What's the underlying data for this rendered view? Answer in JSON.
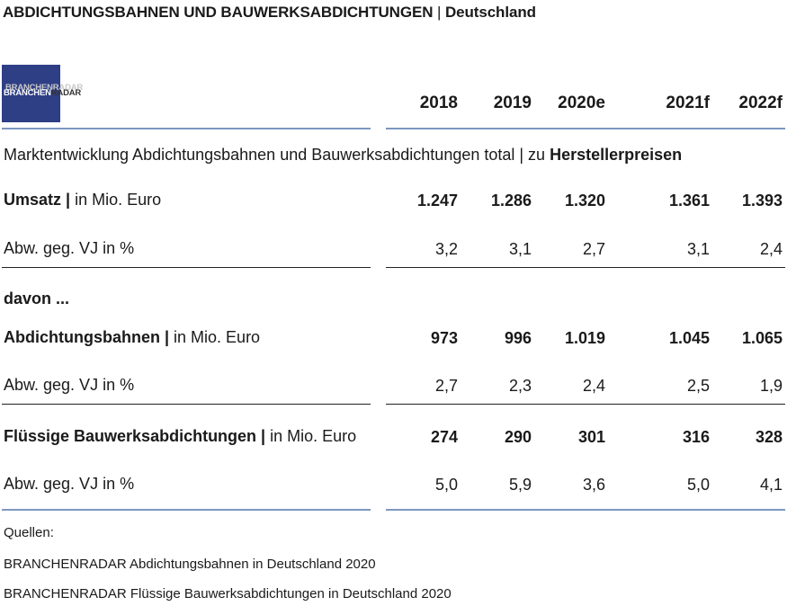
{
  "header": {
    "title_main": "ABDICHTUNGSBAHNEN UND BAUWERKSABDICHTUNGEN",
    "title_sep": " | ",
    "title_region": "Deutschland"
  },
  "logo": {
    "text_part1": "BRANCHEN",
    "text_part2": "RADAR",
    "ghost_text": "BRANCHENRADAR",
    "color": "#2e3f86"
  },
  "years": [
    "2018",
    "2019",
    "2020e",
    "2021f",
    "2022f"
  ],
  "section_heading": {
    "text": "Marktentwicklung Abdichtungsbahnen und Bauwerksabdichtungen total | zu ",
    "bold": "Herstellerpreisen"
  },
  "rows": {
    "umsatz": {
      "label_bold": "Umsatz |",
      "label_rest": " in Mio. Euro",
      "values": [
        "1.247",
        "1.286",
        "1.320",
        "1.361",
        "1.393"
      ]
    },
    "umsatz_abw": {
      "label": "Abw. geg. VJ in %",
      "values": [
        "3,2",
        "3,1",
        "2,7",
        "3,1",
        "2,4"
      ]
    },
    "davon": {
      "label": "davon ..."
    },
    "bahnen": {
      "label_bold": "Abdichtungsbahnen |",
      "label_rest": " in Mio. Euro",
      "values": [
        "973",
        "996",
        "1.019",
        "1.045",
        "1.065"
      ]
    },
    "bahnen_abw": {
      "label": "Abw. geg. VJ in %",
      "values": [
        "2,7",
        "2,3",
        "2,4",
        "2,5",
        "1,9"
      ]
    },
    "fluessig": {
      "label_bold": "Flüssige Bauwerksabdichtungen |",
      "label_rest": " in Mio. Euro",
      "values": [
        "274",
        "290",
        "301",
        "316",
        "328"
      ]
    },
    "fluessig_abw": {
      "label": "Abw. geg. VJ in %",
      "values": [
        "5,0",
        "5,9",
        "3,6",
        "5,0",
        "4,1"
      ]
    }
  },
  "sources": {
    "heading": "Quellen:",
    "items": [
      "BRANCHENRADAR Abdichtungsbahnen in Deutschland 2020",
      "BRANCHENRADAR Flüssige Bauwerksabdichtungen in Deutschland 2020"
    ]
  },
  "colors": {
    "rule_blue": "#7d97c0",
    "rule_dark": "#222222",
    "logo_blue": "#2e3f86"
  }
}
